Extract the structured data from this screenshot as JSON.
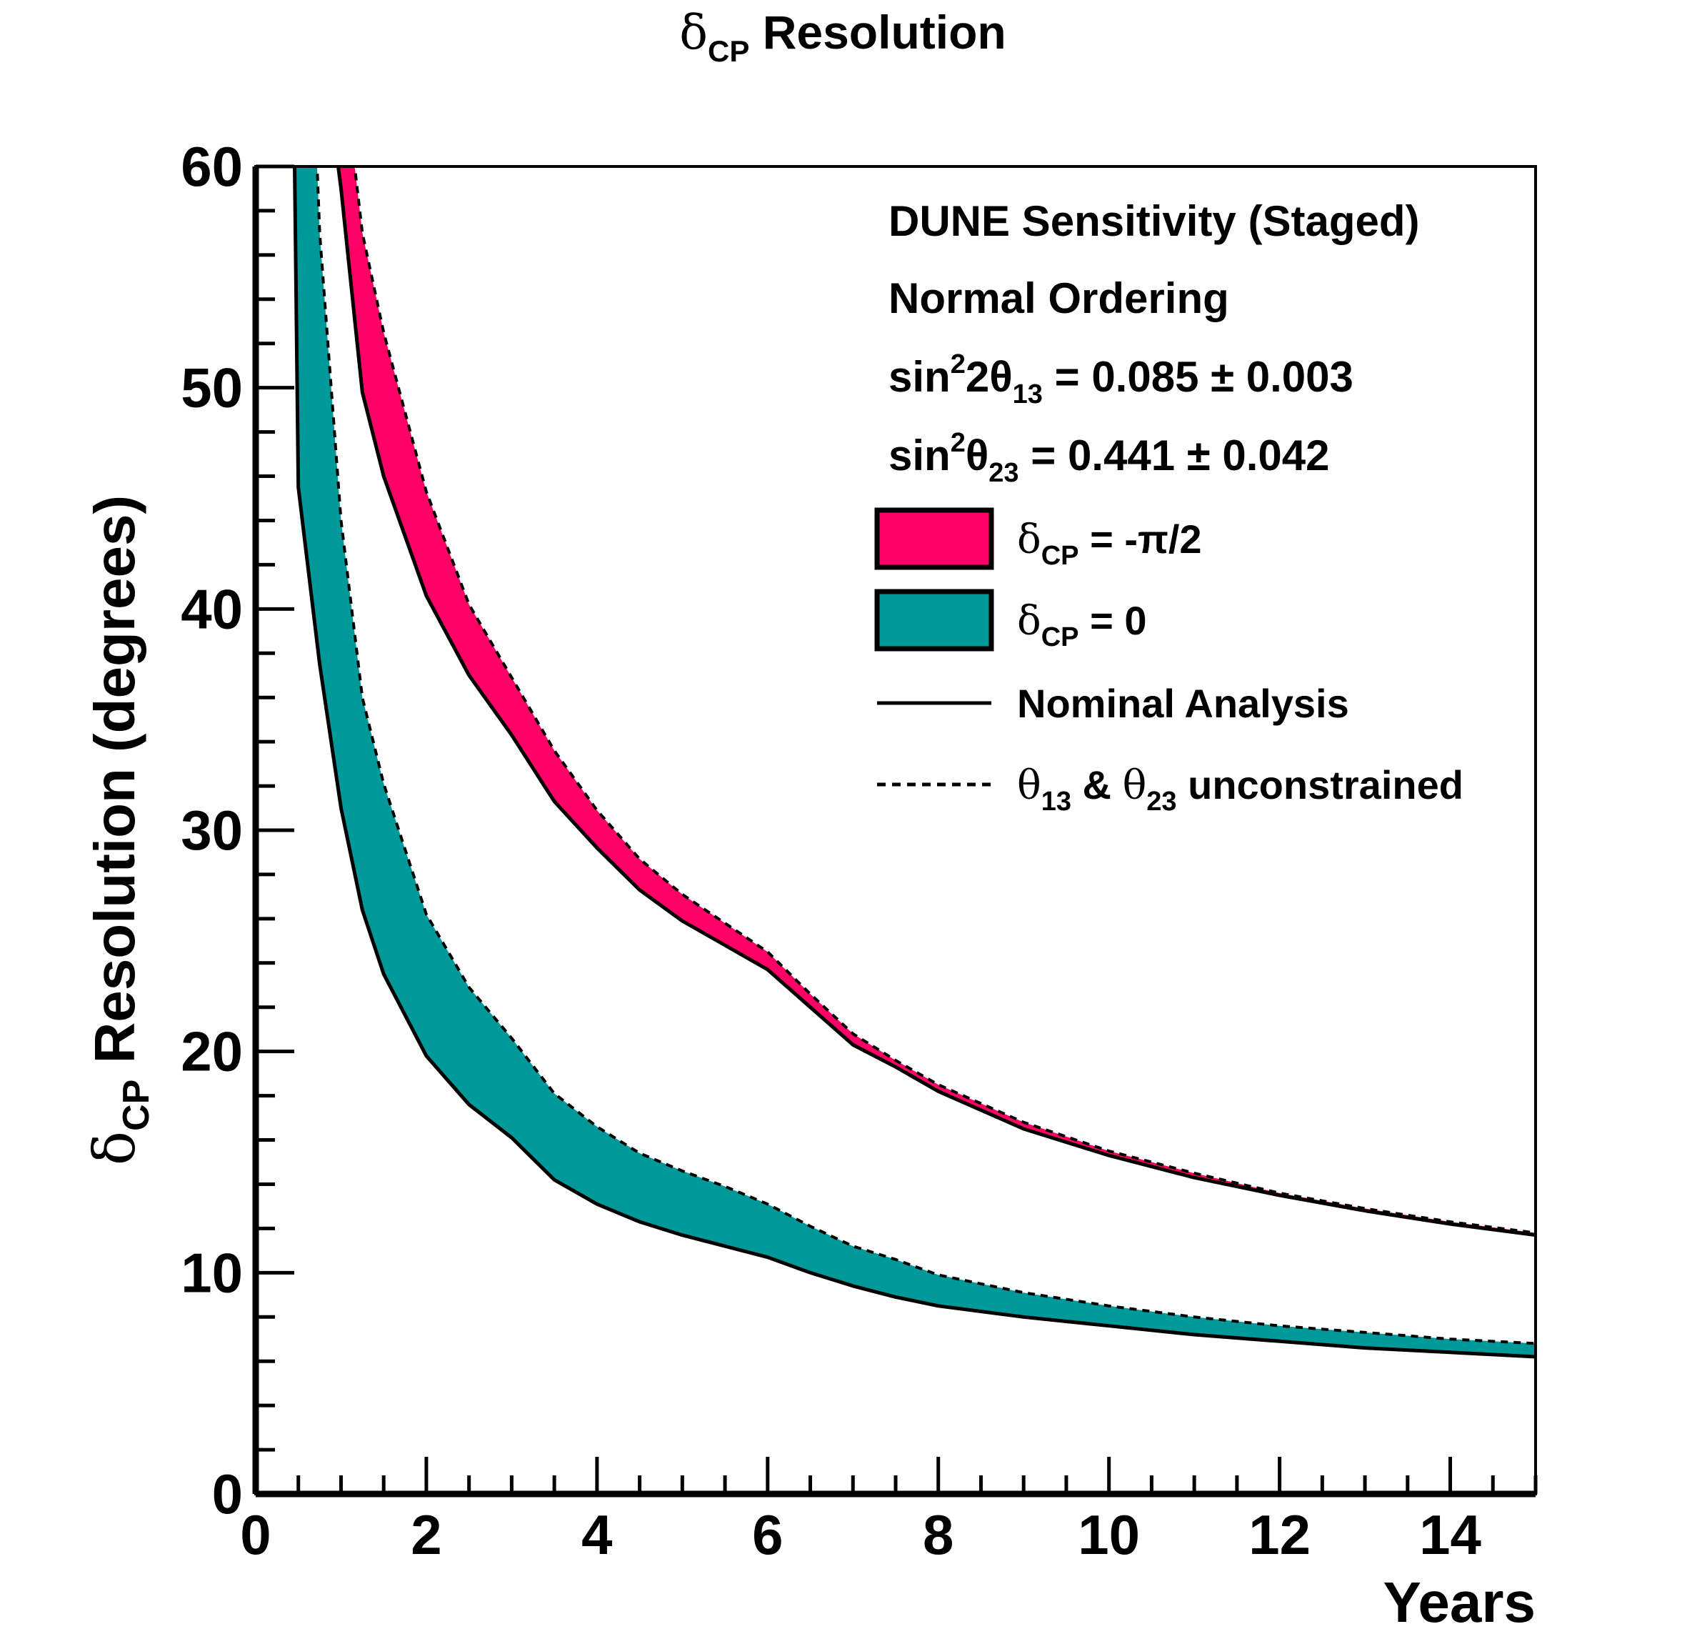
{
  "chart_data": {
    "type": "area",
    "title": {
      "symbol": "δ",
      "sub": "CP",
      "text": "Resolution"
    },
    "xlabel": "Years",
    "ylabel": {
      "symbol": "δ",
      "sub": "CP",
      "text": "Resolution (degrees)"
    },
    "xlim": [
      0,
      15
    ],
    "ylim": [
      0,
      60
    ],
    "x_ticks": [
      0,
      2,
      4,
      6,
      8,
      10,
      12,
      14
    ],
    "x_tick_labels": [
      "0",
      "2",
      "4",
      "6",
      "8",
      "10",
      "12",
      "14"
    ],
    "y_ticks": [
      0,
      10,
      20,
      30,
      40,
      50,
      60
    ],
    "y_tick_labels": [
      "0",
      "10",
      "20",
      "30",
      "40",
      "50",
      "60"
    ],
    "grid": false,
    "legend_position": "top-right",
    "info_text": {
      "line1": "DUNE Sensitivity (Staged)",
      "line2": "Normal Ordering",
      "line3": {
        "a": "sin",
        "sup": "2",
        "b": "2θ",
        "sub": "13",
        "c": " = 0.085 ± 0.003"
      },
      "line4": {
        "a": "sin",
        "sup": "2",
        "b": "θ",
        "sub": "23",
        "c": " = 0.441 ± 0.042"
      }
    },
    "legend": {
      "band_red": {
        "symbol": "δ",
        "sub": "CP",
        "text": " = -π/2"
      },
      "band_teal": {
        "symbol": "δ",
        "sub": "CP",
        "text": " = 0"
      },
      "solid": "Nominal Analysis",
      "dashed": {
        "a": "θ",
        "sub1": "13",
        "amp": " & ",
        "b": "θ",
        "sub2": "23",
        "c": " unconstrained"
      }
    },
    "colors": {
      "red_band": "#ff0066",
      "teal_band": "#009999",
      "line": "#000000"
    },
    "series": [
      {
        "band": "δCP = -π/2",
        "color": "#ff0066",
        "nominal": {
          "x": [
            0.9,
            1.0,
            1.25,
            1.5,
            2.0,
            2.5,
            3.0,
            3.5,
            4.0,
            4.5,
            5.0,
            5.5,
            6.0,
            6.5,
            7.0,
            7.5,
            8.0,
            9.0,
            10.0,
            11.0,
            12.0,
            13.0,
            14.0,
            15.0
          ],
          "y": [
            62,
            59,
            49.8,
            46,
            40.6,
            37,
            34.3,
            31.3,
            29.2,
            27.3,
            25.9,
            24.8,
            23.7,
            22.0,
            20.3,
            19.3,
            18.2,
            16.5,
            15.3,
            14.3,
            13.5,
            12.8,
            12.2,
            11.7
          ]
        },
        "unconstrained": {
          "x": [
            1.1,
            1.25,
            1.5,
            2.0,
            2.5,
            3.0,
            3.5,
            4.0,
            4.5,
            5.0,
            5.5,
            6.0,
            6.5,
            7.0,
            7.5,
            8.0,
            9.0,
            10.0,
            11.0,
            12.0,
            13.0,
            14.0,
            15.0
          ],
          "y": [
            62,
            57,
            52.5,
            45.3,
            40.2,
            36.9,
            33.6,
            30.9,
            28.7,
            27.1,
            25.8,
            24.5,
            22.6,
            20.8,
            19.6,
            18.5,
            16.8,
            15.5,
            14.5,
            13.6,
            12.9,
            12.3,
            11.8
          ]
        }
      },
      {
        "band": "δCP = 0",
        "color": "#009999",
        "nominal": {
          "x": [
            0.45,
            0.5,
            0.75,
            1.0,
            1.25,
            1.5,
            2.0,
            2.5,
            3.0,
            3.5,
            4.0,
            4.5,
            5.0,
            5.5,
            6.0,
            6.5,
            7.0,
            7.5,
            8.0,
            9.0,
            10.0,
            11.0,
            12.0,
            13.0,
            14.0,
            15.0
          ],
          "y": [
            62,
            45.5,
            37.5,
            31,
            26.4,
            23.5,
            19.8,
            17.6,
            16.1,
            14.2,
            13.1,
            12.3,
            11.7,
            11.2,
            10.7,
            10.0,
            9.4,
            8.9,
            8.5,
            8.0,
            7.6,
            7.2,
            6.9,
            6.6,
            6.4,
            6.2
          ]
        },
        "unconstrained": {
          "x": [
            0.7,
            0.75,
            1.0,
            1.25,
            1.5,
            2.0,
            2.5,
            3.0,
            3.5,
            4.0,
            4.5,
            5.0,
            5.5,
            6.0,
            6.5,
            7.0,
            7.5,
            8.0,
            9.0,
            10.0,
            11.0,
            12.0,
            13.0,
            14.0,
            15.0
          ],
          "y": [
            62,
            57,
            44,
            36,
            32.1,
            26.2,
            22.9,
            20.6,
            18.1,
            16.6,
            15.4,
            14.6,
            13.9,
            13.1,
            12.1,
            11.2,
            10.6,
            9.9,
            9.1,
            8.5,
            8.0,
            7.6,
            7.3,
            7.0,
            6.8
          ]
        }
      }
    ]
  }
}
